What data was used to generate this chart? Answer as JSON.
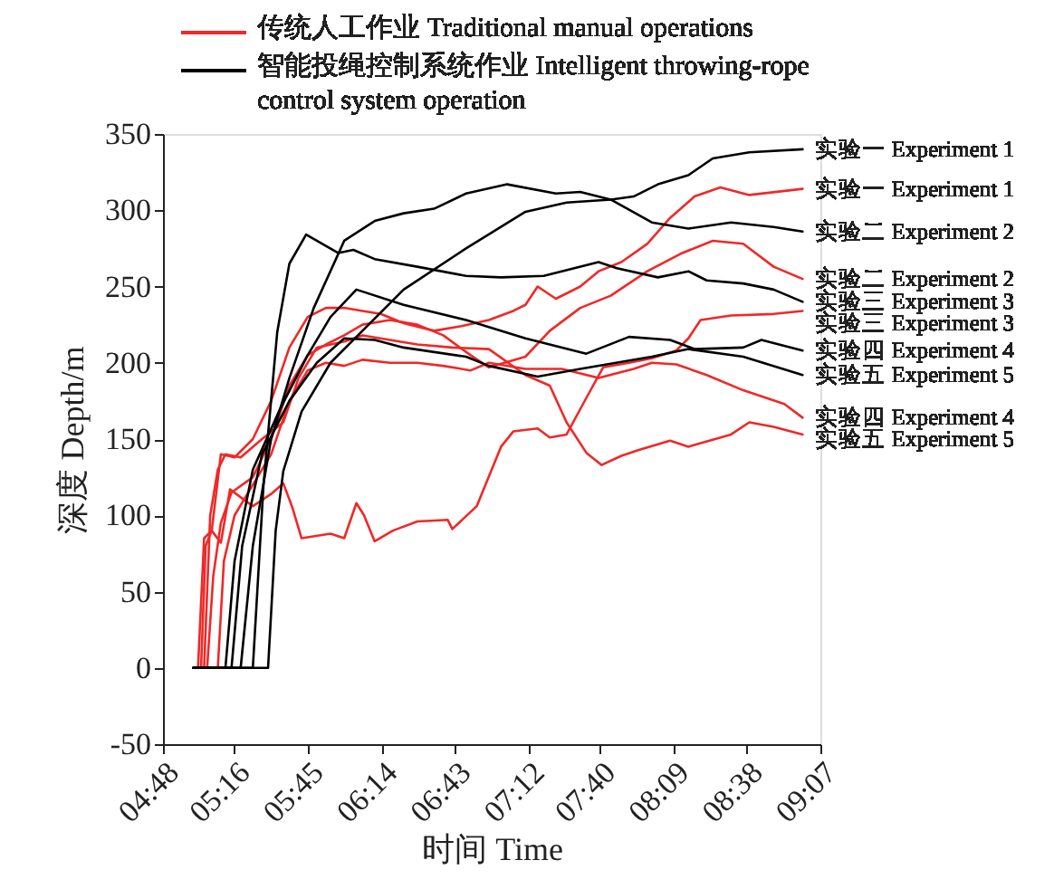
{
  "chart_data": {
    "type": "line",
    "xlabel": "时间 Time",
    "ylabel": "深度 Depth/m",
    "xlim": [
      4.8,
      9.1167
    ],
    "ylim": [
      -50,
      350
    ],
    "xticks": [
      {
        "value": 4.8,
        "label": "04:48"
      },
      {
        "value": 5.2667,
        "label": "05:16"
      },
      {
        "value": 5.75,
        "label": "05:45"
      },
      {
        "value": 6.2333,
        "label": "06:14"
      },
      {
        "value": 6.7167,
        "label": "06:43"
      },
      {
        "value": 7.2,
        "label": "07:12"
      },
      {
        "value": 7.6667,
        "label": "07:40"
      },
      {
        "value": 8.15,
        "label": "08:09"
      },
      {
        "value": 8.6333,
        "label": "08:38"
      },
      {
        "value": 9.1167,
        "label": "09:07"
      }
    ],
    "yticks": [
      -50,
      0,
      50,
      100,
      150,
      200,
      250,
      300,
      350
    ],
    "grid": false,
    "legend": "top",
    "marker": "none",
    "line_style": "solid",
    "series": [
      {
        "name": "实验一 Experiment 1",
        "color": "#f02828",
        "x": [
          5.0,
          5.03,
          5.07,
          5.12,
          5.18,
          5.27,
          5.39,
          5.51,
          5.63,
          5.75,
          5.87,
          5.99,
          6.11,
          6.23,
          6.38,
          6.58,
          6.76,
          6.94,
          7.1,
          7.18,
          7.26,
          7.38,
          7.54,
          7.66,
          7.81,
          7.98,
          8.13,
          8.29,
          8.46,
          8.65,
          9.0
        ],
        "values": [
          0,
          0,
          85,
          90,
          140,
          138,
          150,
          175,
          210,
          230,
          236,
          236,
          234,
          232,
          226,
          221,
          224,
          228,
          234,
          238,
          250,
          242,
          250,
          260,
          266,
          278,
          295,
          309,
          315,
          310,
          314
        ]
      },
      {
        "name": "实验二 Experiment 2",
        "color": "#f02828",
        "x": [
          5.0,
          5.09,
          5.13,
          5.18,
          5.25,
          5.39,
          5.51,
          5.63,
          5.75,
          5.87,
          5.99,
          6.11,
          6.29,
          6.47,
          6.64,
          6.82,
          6.94,
          7.18,
          7.34,
          7.54,
          7.74,
          7.98,
          8.21,
          8.41,
          8.61,
          8.81,
          9.0
        ],
        "values": [
          0,
          0,
          60,
          95,
          115,
          125,
          150,
          185,
          205,
          212,
          218,
          225,
          228,
          225,
          218,
          205,
          197,
          204,
          221,
          236,
          244,
          260,
          272,
          280,
          278,
          263,
          255
        ]
      },
      {
        "name": "实验三 Experiment 3",
        "color": "#f02828",
        "x": [
          5.0,
          5.05,
          5.08,
          5.12,
          5.18,
          5.24,
          5.39,
          5.51,
          5.59,
          5.65,
          5.71,
          5.9,
          5.99,
          6.07,
          6.12,
          6.19,
          6.31,
          6.47,
          6.67,
          6.7,
          6.86,
          7.02,
          7.1,
          7.26,
          7.34,
          7.45,
          7.58,
          7.69,
          7.86,
          8.01,
          8.17,
          8.25,
          8.33,
          8.53,
          8.81,
          9.0
        ],
        "values": [
          0,
          0,
          80,
          90,
          82,
          117,
          106,
          114,
          121,
          105,
          85,
          88,
          85,
          108,
          100,
          83,
          90,
          96,
          97,
          91,
          106,
          145,
          155,
          157,
          151,
          153,
          177,
          197,
          200,
          203,
          208,
          216,
          228,
          231,
          232,
          234
        ]
      },
      {
        "name": "实验四 Experiment 4",
        "color": "#f02828",
        "x": [
          5.0,
          5.16,
          5.2,
          5.27,
          5.39,
          5.51,
          5.63,
          5.75,
          5.87,
          5.99,
          6.11,
          6.29,
          6.47,
          6.64,
          6.82,
          6.94,
          7.18,
          7.42,
          7.66,
          7.89,
          8.01,
          8.17,
          8.37,
          8.61,
          8.88,
          9.0
        ],
        "values": [
          0,
          0,
          70,
          100,
          120,
          140,
          175,
          195,
          200,
          198,
          202,
          200,
          200,
          198,
          195,
          200,
          196,
          196,
          190,
          196,
          200,
          199,
          192,
          182,
          173,
          164
        ]
      },
      {
        "name": "实验五 Experiment 5",
        "color": "#f02828",
        "x": [
          5.0,
          5.07,
          5.11,
          5.16,
          5.21,
          5.31,
          5.45,
          5.59,
          5.69,
          5.81,
          5.99,
          6.11,
          6.29,
          6.47,
          6.7,
          6.94,
          7.18,
          7.34,
          7.45,
          7.58,
          7.68,
          7.81,
          7.93,
          8.13,
          8.25,
          8.53,
          8.65,
          8.81,
          9.0
        ],
        "values": [
          0,
          0,
          100,
          130,
          140,
          138,
          150,
          161,
          190,
          210,
          214,
          218,
          215,
          212,
          210,
          209,
          192,
          185,
          161,
          141,
          133,
          139,
          143,
          149,
          145,
          153,
          161,
          158,
          153
        ]
      },
      {
        "name": "实验一 Experiment 1",
        "color": "#000000",
        "x": [
          5.0,
          5.49,
          5.54,
          5.59,
          5.71,
          5.9,
          6.11,
          6.38,
          6.79,
          7.18,
          7.45,
          7.74,
          7.89,
          8.05,
          8.25,
          8.41,
          8.65,
          9.0
        ],
        "values": [
          0,
          0,
          90,
          129,
          168,
          200,
          221,
          248,
          275,
          299,
          305,
          307,
          309,
          317,
          323,
          334,
          338,
          340
        ]
      },
      {
        "name": "实验二 Experiment 2",
        "color": "#000000",
        "x": [
          5.0,
          5.31,
          5.39,
          5.51,
          5.63,
          5.79,
          5.99,
          6.19,
          6.38,
          6.58,
          6.79,
          7.06,
          7.38,
          7.54,
          7.74,
          8.01,
          8.25,
          8.53,
          8.81,
          9.0
        ],
        "values": [
          0,
          0,
          80,
          150,
          190,
          236,
          280,
          293,
          298,
          301,
          311,
          317,
          311,
          312,
          307,
          292,
          288,
          292,
          289,
          286
        ]
      },
      {
        "name": "实验三 Experiment 3",
        "color": "#000000",
        "x": [
          5.0,
          5.39,
          5.46,
          5.55,
          5.63,
          5.74,
          5.95,
          6.05,
          6.19,
          6.47,
          6.79,
          7.02,
          7.3,
          7.66,
          7.78,
          8.05,
          8.25,
          8.37,
          8.61,
          8.81,
          9.0
        ],
        "values": [
          0,
          0,
          120,
          220,
          265,
          284,
          272,
          274,
          268,
          263,
          257,
          256,
          257,
          266,
          262,
          256,
          260,
          254,
          252,
          248,
          240
        ]
      },
      {
        "name": "实验四 Experiment 4",
        "color": "#000000",
        "x": [
          5.0,
          5.21,
          5.27,
          5.39,
          5.57,
          5.75,
          5.9,
          6.07,
          6.38,
          6.79,
          7.18,
          7.58,
          7.86,
          8.13,
          8.29,
          8.61,
          8.73,
          9.0
        ],
        "values": [
          0,
          0,
          70,
          130,
          170,
          205,
          230,
          248,
          238,
          228,
          216,
          206,
          217,
          215,
          209,
          210,
          215,
          208
        ]
      },
      {
        "name": "实验五 Experiment 5",
        "color": "#000000",
        "x": [
          5.0,
          5.25,
          5.32,
          5.45,
          5.63,
          5.81,
          5.99,
          6.19,
          6.38,
          6.79,
          6.94,
          7.26,
          7.54,
          8.01,
          8.25,
          8.61,
          9.0
        ],
        "values": [
          0,
          0,
          80,
          140,
          175,
          200,
          216,
          215,
          210,
          204,
          198,
          191,
          196,
          204,
          209,
          204,
          192
        ]
      }
    ],
    "annotations": [
      "传统人工作业 Traditional manual operations",
      "智能投绳控制系统作业 Intelligent throwing-rope control system operation"
    ]
  }
}
